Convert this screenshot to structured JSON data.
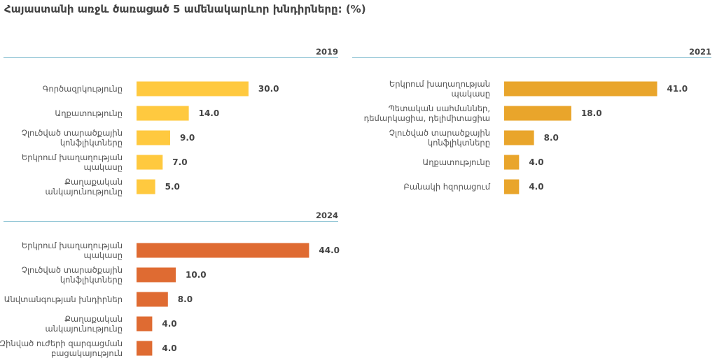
{
  "title": "Հայաստանի առջև ծառացած 5 ամենակարևոր խնդիրները: (%)",
  "chart_data": [
    {
      "type": "bar",
      "title": "2019",
      "orientation": "horizontal",
      "color": "#ffc93f",
      "categories": [
        [
          "Գործազրկությունը"
        ],
        [
          "Աղքատությունը"
        ],
        [
          "Չլուծված տարածքային",
          "կոնֆլիկտները"
        ],
        [
          "Երկրում խաղաղության",
          "պակասը"
        ],
        [
          "Քաղաքական",
          "անկայունությունը"
        ]
      ],
      "values": [
        30.0,
        14.0,
        9.0,
        7.0,
        5.0
      ],
      "value_labels": [
        "30.0",
        "14.0",
        "9.0",
        "7.0",
        "5.0"
      ]
    },
    {
      "type": "bar",
      "title": "2021",
      "orientation": "horizontal",
      "color": "#e9a52b",
      "categories": [
        [
          "Երկրում խաղաղության",
          "պակասը"
        ],
        [
          "Պետական սահմաններ,",
          "դեմարկացիա, դելիմիտացիա"
        ],
        [
          "Չլուծված տարածքային",
          "կոնֆլիկտները"
        ],
        [
          "Աղքատությունը"
        ],
        [
          "Բանակի հզորացում"
        ]
      ],
      "values": [
        41.0,
        18.0,
        8.0,
        4.0,
        4.0
      ],
      "value_labels": [
        "41.0",
        "18.0",
        "8.0",
        "4.0",
        "4.0"
      ]
    },
    {
      "type": "bar",
      "title": "2024",
      "orientation": "horizontal",
      "color": "#df6b32",
      "categories": [
        [
          "Երկրում խաղաղության",
          "պակասը"
        ],
        [
          "Չլուծված տարածքային",
          "կոնֆլիկտները"
        ],
        [
          "Անվտանգության խնդիրներ"
        ],
        [
          "Քաղաքական",
          "անկայունությունը"
        ],
        [
          "Զինված ուժերի զարգացման",
          "բացակայություն"
        ]
      ],
      "values": [
        44.0,
        10.0,
        8.0,
        4.0,
        4.0
      ],
      "value_labels": [
        "44.0",
        "10.0",
        "8.0",
        "4.0",
        "4.0"
      ]
    }
  ]
}
